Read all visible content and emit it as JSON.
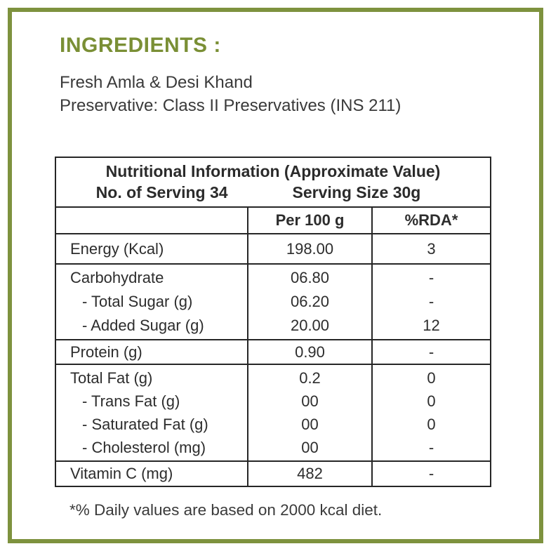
{
  "colors": {
    "frame_green": "#7e923e",
    "heading_green": "#7a8f35",
    "table_border": "#262626",
    "text_dark": "#3a3a3a"
  },
  "label": {
    "heading": "INGREDIENTS :",
    "ingredient_line1": "Fresh Amla & Desi Khand",
    "ingredient_line2": "Preservative: Class II Preservatives (INS 211)",
    "footnote": "*% Daily values are based on 2000 kcal diet."
  },
  "table": {
    "title": "Nutritional Information (Approximate Value)",
    "serving_count": "No. of Serving 34",
    "serving_size": "Serving Size 30g",
    "columns": [
      "",
      "Per 100 g",
      "%RDA*"
    ],
    "groups": [
      {
        "rows": [
          {
            "label": "Energy (Kcal)",
            "per100": "198.00",
            "rda": "3"
          }
        ]
      },
      {
        "rows": [
          {
            "label": "Carbohydrate",
            "per100": "06.80",
            "rda": "-"
          },
          {
            "label": "- Total Sugar (g)",
            "per100": "06.20",
            "rda": "-"
          },
          {
            "label": "- Added Sugar (g)",
            "per100": "20.00",
            "rda": "12"
          }
        ]
      },
      {
        "rows": [
          {
            "label": "Protein (g)",
            "per100": "0.90",
            "rda": "-"
          }
        ]
      },
      {
        "rows": [
          {
            "label": "Total Fat (g)",
            "per100": "0.2",
            "rda": "0"
          },
          {
            "label": "- Trans Fat (g)",
            "per100": "00",
            "rda": "0"
          },
          {
            "label": "- Saturated Fat (g)",
            "per100": "00",
            "rda": "0"
          },
          {
            "label": "- Cholesterol (mg)",
            "per100": "00",
            "rda": "-"
          }
        ]
      },
      {
        "rows": [
          {
            "label": "Vitamin C (mg)",
            "per100": "482",
            "rda": "-"
          }
        ]
      }
    ]
  }
}
